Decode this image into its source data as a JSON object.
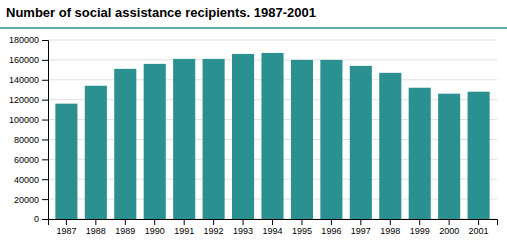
{
  "chart_data": {
    "type": "bar",
    "title": "Number of social assistance recipients. 1987-2001",
    "categories": [
      "1987",
      "1988",
      "1989",
      "1990",
      "1991",
      "1992",
      "1993",
      "1994",
      "1995",
      "1996",
      "1997",
      "1998",
      "1999",
      "2000",
      "2001"
    ],
    "values": [
      116000,
      134000,
      151000,
      156000,
      161000,
      161000,
      166000,
      167000,
      160000,
      160000,
      154000,
      147000,
      132000,
      126000,
      128000
    ],
    "color": "#2a9090",
    "ylim": [
      0,
      180000
    ],
    "yticks": [
      0,
      20000,
      40000,
      60000,
      80000,
      100000,
      120000,
      140000,
      160000,
      180000
    ],
    "grid": true
  }
}
